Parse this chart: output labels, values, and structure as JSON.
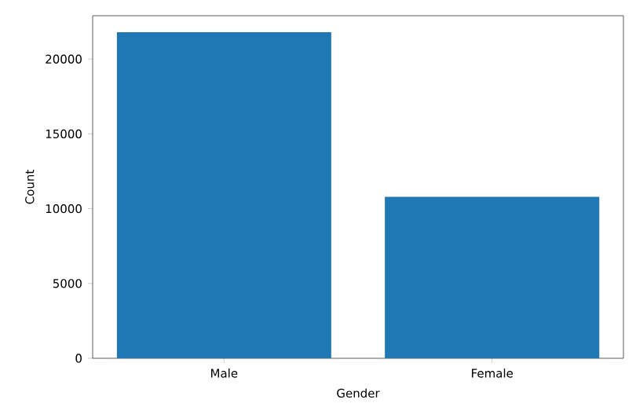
{
  "chart_data": {
    "type": "bar",
    "xlabel": "Gender",
    "ylabel": "Count",
    "categories": [
      "Male",
      "Female"
    ],
    "values": [
      21800,
      10800
    ],
    "color": "#1f77b4",
    "ylim": [
      0,
      22900
    ],
    "yticks": [
      0,
      5000,
      10000,
      15000,
      20000
    ]
  }
}
